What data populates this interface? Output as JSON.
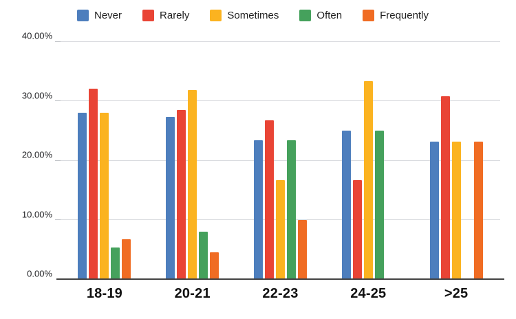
{
  "chart_data": {
    "type": "bar",
    "title": "",
    "xlabel": "",
    "ylabel": "",
    "categories": [
      "18-19",
      "20-21",
      "22-23",
      "24-25",
      ">25"
    ],
    "series": [
      {
        "name": "Never",
        "color": "#4D7EBD",
        "values": [
          28.0,
          27.27,
          23.33,
          25.0,
          23.08
        ]
      },
      {
        "name": "Rarely",
        "color": "#E94435",
        "values": [
          32.0,
          28.41,
          26.67,
          16.67,
          30.77
        ]
      },
      {
        "name": "Sometimes",
        "color": "#FBB320",
        "values": [
          28.0,
          31.82,
          16.67,
          33.33,
          23.08
        ]
      },
      {
        "name": "Often",
        "color": "#45A15C",
        "values": [
          5.33,
          7.95,
          23.33,
          25.0,
          0
        ]
      },
      {
        "name": "Frequently",
        "color": "#F06C23",
        "values": [
          6.67,
          4.55,
          10.0,
          0,
          23.08
        ]
      }
    ],
    "ylim": [
      0,
      40
    ],
    "y_ticks": [
      {
        "value": 0,
        "label": "0.00%"
      },
      {
        "value": 10,
        "label": "10.00%"
      },
      {
        "value": 20,
        "label": "20.00%"
      },
      {
        "value": 30,
        "label": "30.00%"
      },
      {
        "value": 40,
        "label": "40.00%"
      }
    ],
    "grid": true,
    "legend_position": "top"
  }
}
